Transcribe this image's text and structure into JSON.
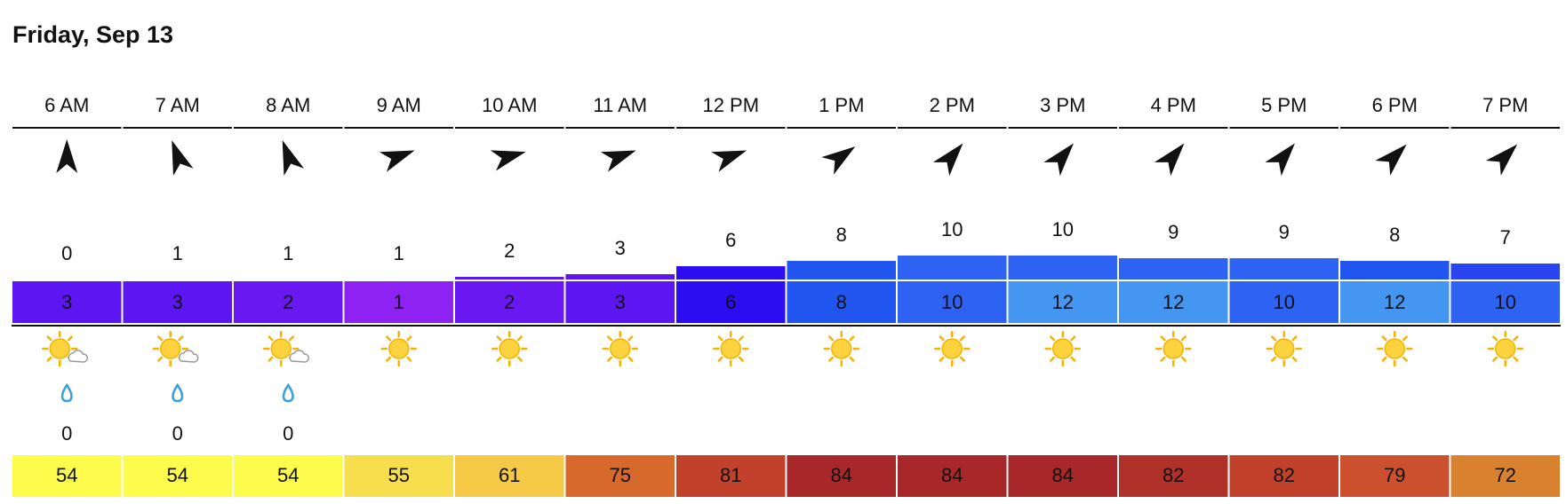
{
  "header": {
    "title": "Friday, Sep 13"
  },
  "hours": [
    "6 AM",
    "7 AM",
    "8 AM",
    "9 AM",
    "10 AM",
    "11 AM",
    "12 PM",
    "1 PM",
    "2 PM",
    "3 PM",
    "4 PM",
    "5 PM",
    "6 PM",
    "7 PM"
  ],
  "wind_direction_deg": [
    0,
    340,
    340,
    70,
    75,
    70,
    70,
    55,
    40,
    40,
    40,
    40,
    45,
    45
  ],
  "wind_speed": [
    0,
    1,
    1,
    1,
    2,
    3,
    6,
    8,
    10,
    10,
    9,
    9,
    8,
    7
  ],
  "wind_colors": [
    "#5b16f2",
    "#5b16f2",
    "#5b16f2",
    "#5b16f2",
    "#5b16f2",
    "#5b16f2",
    "#2c0cf0",
    "#2155f0",
    "#2d62f2",
    "#2d62f2",
    "#2d62f2",
    "#2d62f2",
    "#2155f0",
    "#2a45f0"
  ],
  "gusts": [
    3,
    3,
    2,
    1,
    2,
    3,
    6,
    8,
    10,
    12,
    12,
    10,
    12,
    10
  ],
  "gust_colors": [
    "#5b16f2",
    "#5b16f2",
    "#6a18f2",
    "#8d22f2",
    "#6a18f2",
    "#5b16f2",
    "#2c0cf0",
    "#2155f0",
    "#2d62f2",
    "#4596f0",
    "#4596f0",
    "#2d62f2",
    "#4596f0",
    "#2d62f2"
  ],
  "cloudy": [
    true,
    true,
    true,
    false,
    false,
    false,
    false,
    false,
    false,
    false,
    false,
    false,
    false,
    false
  ],
  "precip": [
    0,
    0,
    0,
    null,
    null,
    null,
    null,
    null,
    null,
    null,
    null,
    null,
    null,
    null
  ],
  "temperature": [
    54,
    54,
    54,
    55,
    61,
    75,
    81,
    84,
    84,
    84,
    82,
    82,
    79,
    72
  ],
  "temperature_colors": [
    "#fdfc4c",
    "#fdfc4c",
    "#fdfc4c",
    "#f7de4c",
    "#f5c945",
    "#d8692d",
    "#c1412a",
    "#a8282a",
    "#a8282a",
    "#a8282a",
    "#b0302a",
    "#c1412a",
    "#cc502e",
    "#d8812f"
  ],
  "temperature_text_colors": [
    "#111",
    "#111",
    "#111",
    "#111",
    "#111",
    "#fff",
    "#fff",
    "#fff",
    "#fff",
    "#fff",
    "#fff",
    "#fff",
    "#fff",
    "#fff"
  ]
}
